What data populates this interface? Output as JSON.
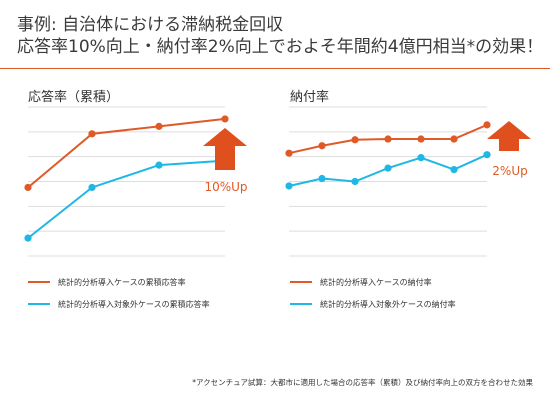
{
  "title": {
    "line1": "事例: 自治体における滞納税金回収",
    "line2": "応答率10%向上・納付率2%向上でおよそ年間約4億円相当*の効果！"
  },
  "colors": {
    "accent": "#e05a28",
    "analytics_series": "#e05a28",
    "non_analytics_series": "#1fb7e6",
    "grid": "#dddddd",
    "arrow": "#e0501e"
  },
  "chart_data": [
    {
      "type": "line",
      "title": "応答率（累積）",
      "x": [
        1,
        2,
        3,
        4
      ],
      "ylim": [
        0,
        1
      ],
      "grid": true,
      "series": [
        {
          "name": "統計的分析導入ケースの累積応答率",
          "values": [
            0.46,
            0.82,
            0.87,
            0.92
          ]
        },
        {
          "name": "統計的分析導入対象外ケースの累積応答率",
          "values": [
            0.12,
            0.46,
            0.61,
            0.64
          ]
        }
      ],
      "annotation": "10%Up"
    },
    {
      "type": "line",
      "title": "納付率",
      "x": [
        1,
        2,
        3,
        4,
        5,
        6,
        7
      ],
      "ylim": [
        0,
        1
      ],
      "grid": true,
      "series": [
        {
          "name": "統計的分析導入ケースの納付率",
          "values": [
            0.69,
            0.74,
            0.78,
            0.785,
            0.785,
            0.785,
            0.88
          ]
        },
        {
          "name": "統計的分析導入対象外ケースの納付率",
          "values": [
            0.47,
            0.52,
            0.5,
            0.59,
            0.66,
            0.58,
            0.68
          ]
        }
      ],
      "annotation": "2%Up"
    }
  ],
  "footnote": "*アクセンチュア試算：大都市に適用した場合の応答率（累積）及び納付率向上の双方を合わせた効果"
}
